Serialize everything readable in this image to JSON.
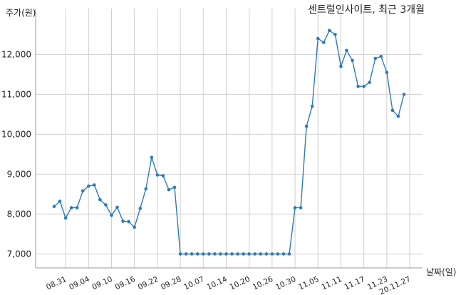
{
  "chart_data": {
    "type": "line",
    "title": "센트럴인사이트, 최근 3개월",
    "xlabel": "날짜(일)",
    "ylabel": "주가(원)",
    "ylim": [
      6650,
      13150
    ],
    "yticks": [
      7000,
      8000,
      9000,
      10000,
      11000,
      12000
    ],
    "ytick_labels": [
      "7,000",
      "8,000",
      "9,000",
      "10,000",
      "11,000",
      "12,000"
    ],
    "xtick_labels": [
      "08.31",
      "09.04",
      "09.10",
      "09.16",
      "09.22",
      "09.28",
      "10.07",
      "10.14",
      "10.20",
      "10.26",
      "10.30",
      "11.05",
      "11.11",
      "11.17",
      "11.23",
      "20.11.27"
    ],
    "xtick_index": [
      2,
      6,
      10,
      14,
      18,
      22,
      26,
      30,
      34,
      38,
      42,
      46,
      50,
      54,
      58,
      62
    ],
    "grid": true,
    "color": "#2b7bb9",
    "series": [
      {
        "values": [
          8190,
          8320,
          7900,
          8160,
          8160,
          8580,
          8700,
          8730,
          8360,
          8230,
          7970,
          8170,
          7820,
          7810,
          7670,
          8140,
          8630,
          9420,
          8980,
          8960,
          8610,
          8670,
          7000,
          7000,
          7000,
          7000,
          7000,
          7000,
          7000,
          7000,
          7000,
          7000,
          7000,
          7000,
          7000,
          7000,
          7000,
          7000,
          7000,
          7000,
          7000,
          7000,
          8160,
          8160,
          10200,
          10700,
          12400,
          12300,
          12600,
          12500,
          11700,
          12100,
          11850,
          11200,
          11200,
          11300,
          11900,
          11950,
          11550,
          10600,
          10450,
          11000
        ]
      }
    ]
  }
}
